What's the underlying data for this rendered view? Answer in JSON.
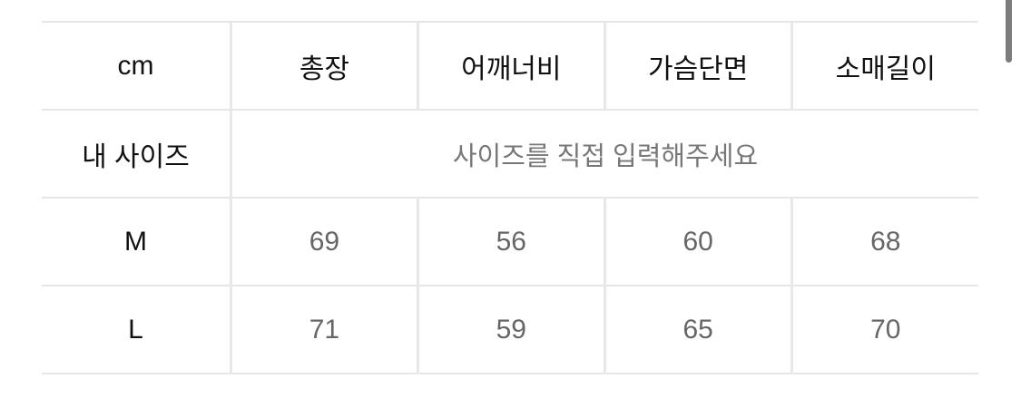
{
  "table": {
    "unit_label": "cm",
    "columns": [
      "총장",
      "어깨너비",
      "가슴단면",
      "소매길이"
    ],
    "my_size": {
      "label": "내 사이즈",
      "placeholder": "사이즈를 직접 입력해주세요"
    },
    "rows": [
      {
        "size": "M",
        "values": [
          "69",
          "56",
          "60",
          "68"
        ]
      },
      {
        "size": "L",
        "values": [
          "71",
          "59",
          "65",
          "70"
        ]
      }
    ]
  }
}
